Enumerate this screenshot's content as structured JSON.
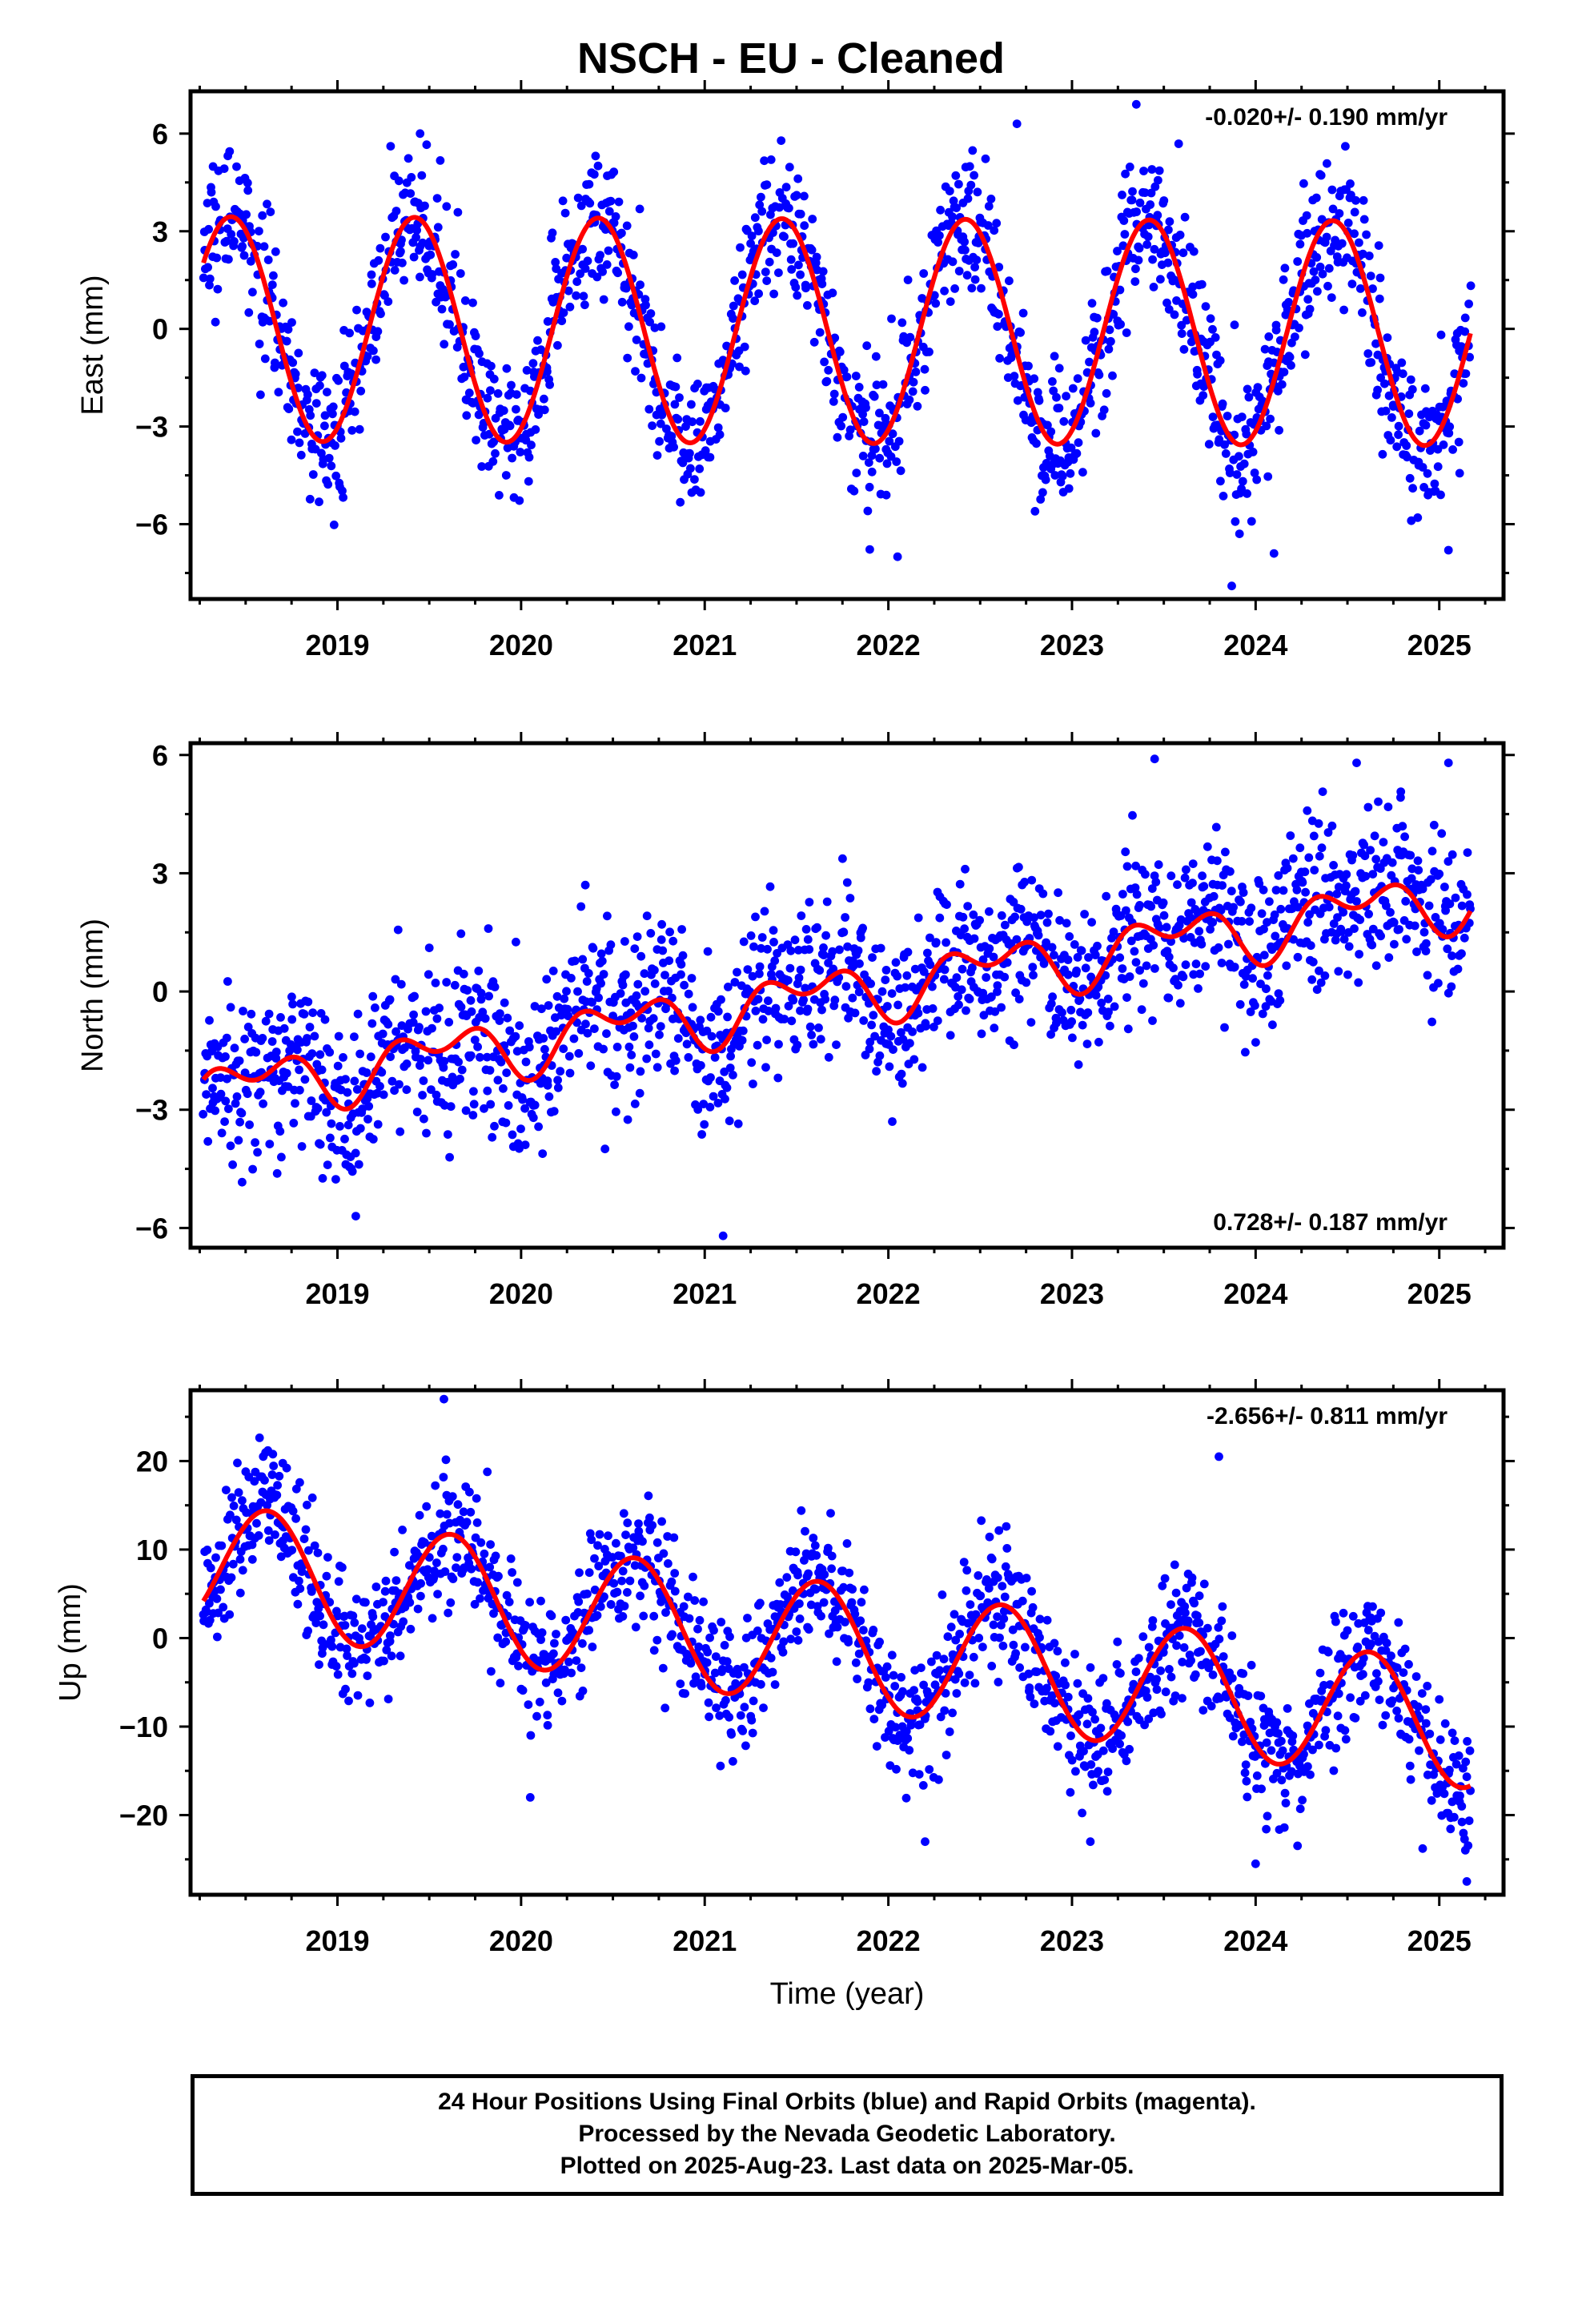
{
  "title": "NSCH  - EU - Cleaned",
  "footer": {
    "line1": "24 Hour Positions Using Final Orbits (blue) and Rapid Orbits (magenta).",
    "line2": "Processed by the Nevada Geodetic Laboratory.",
    "line3": "Plotted on 2025-Aug-23. Last data on 2025-Mar-05."
  },
  "colors": {
    "points": "#0000ff",
    "model": "#ff0000",
    "frame": "#000000"
  },
  "chart_data": [
    {
      "type": "scatter",
      "ylabel": "East (mm)",
      "xlabel": "",
      "xlim": [
        2018.2,
        2025.35
      ],
      "ylim": [
        -8.3,
        7.3
      ],
      "yticks": [
        -6,
        -3,
        0,
        3,
        6
      ],
      "xticks": [
        2019,
        2020,
        2021,
        2022,
        2023,
        2024,
        2025
      ],
      "rate_text": "-0.020+/- 0.190 mm/yr",
      "rate_position": "top-right",
      "data_start": 2018.27,
      "data_end": 2025.17,
      "model": {
        "offset": 0.0,
        "rate": -0.02,
        "annual_amp": 3.45,
        "annual_peak": 0.42,
        "semiannual_amp": 0.0,
        "semiannual_phase": 0.0,
        "ref_epoch": 2018.27
      },
      "scatter_sigma": 1.1,
      "outliers": [
        [
          2023.87,
          -7.9
        ],
        [
          2023.35,
          6.9
        ],
        [
          2019.45,
          6.0
        ],
        [
          2022.7,
          6.3
        ],
        [
          2024.1,
          -6.9
        ],
        [
          2022.05,
          -7.0
        ],
        [
          2025.05,
          -6.8
        ]
      ]
    },
    {
      "type": "scatter",
      "ylabel": "North (mm)",
      "xlabel": "",
      "xlim": [
        2018.2,
        2025.35
      ],
      "ylim": [
        -6.5,
        6.3
      ],
      "yticks": [
        -6,
        -3,
        0,
        3,
        6
      ],
      "xticks": [
        2019,
        2020,
        2021,
        2022,
        2023,
        2024,
        2025
      ],
      "rate_text": "0.728+/- 0.187 mm/yr",
      "rate_position": "bottom-right",
      "data_start": 2018.27,
      "data_end": 2025.17,
      "model": {
        "offset": -2.55,
        "rate": 0.728,
        "annual_amp": 0.55,
        "annual_peak": 0.55,
        "semiannual_amp": 0.45,
        "semiannual_phase": 0.3,
        "ref_epoch": 2018.27
      },
      "scatter_sigma": 1.05,
      "outliers": [
        [
          2021.1,
          -6.2
        ],
        [
          2023.45,
          5.9
        ],
        [
          2024.55,
          5.8
        ],
        [
          2019.1,
          -5.7
        ],
        [
          2025.05,
          5.8
        ],
        [
          2020.35,
          2.7
        ]
      ]
    },
    {
      "type": "scatter",
      "ylabel": "Up (mm)",
      "xlabel": "Time (year)",
      "xlim": [
        2018.2,
        2025.35
      ],
      "ylim": [
        -29,
        28
      ],
      "yticks": [
        -20,
        -10,
        0,
        10,
        20
      ],
      "xticks": [
        2019,
        2020,
        2021,
        2022,
        2023,
        2024,
        2025
      ],
      "rate_text": "-2.656+/- 0.811 mm/yr",
      "rate_position": "top-right",
      "data_start": 2018.27,
      "data_end": 2025.17,
      "model": {
        "offset": 8.3,
        "rate": -2.656,
        "annual_amp": 7.0,
        "annual_peak": 0.62,
        "semiannual_amp": 0.0,
        "semiannual_phase": 0.0,
        "ref_epoch": 2018.27
      },
      "scatter_sigma": 3.8,
      "outliers": [
        [
          2019.58,
          27.0
        ],
        [
          2023.8,
          20.5
        ],
        [
          2020.05,
          -18.0
        ],
        [
          2022.2,
          -23.0
        ],
        [
          2023.1,
          -23.0
        ],
        [
          2025.15,
          -27.5
        ],
        [
          2024.0,
          -25.5
        ]
      ]
    }
  ]
}
